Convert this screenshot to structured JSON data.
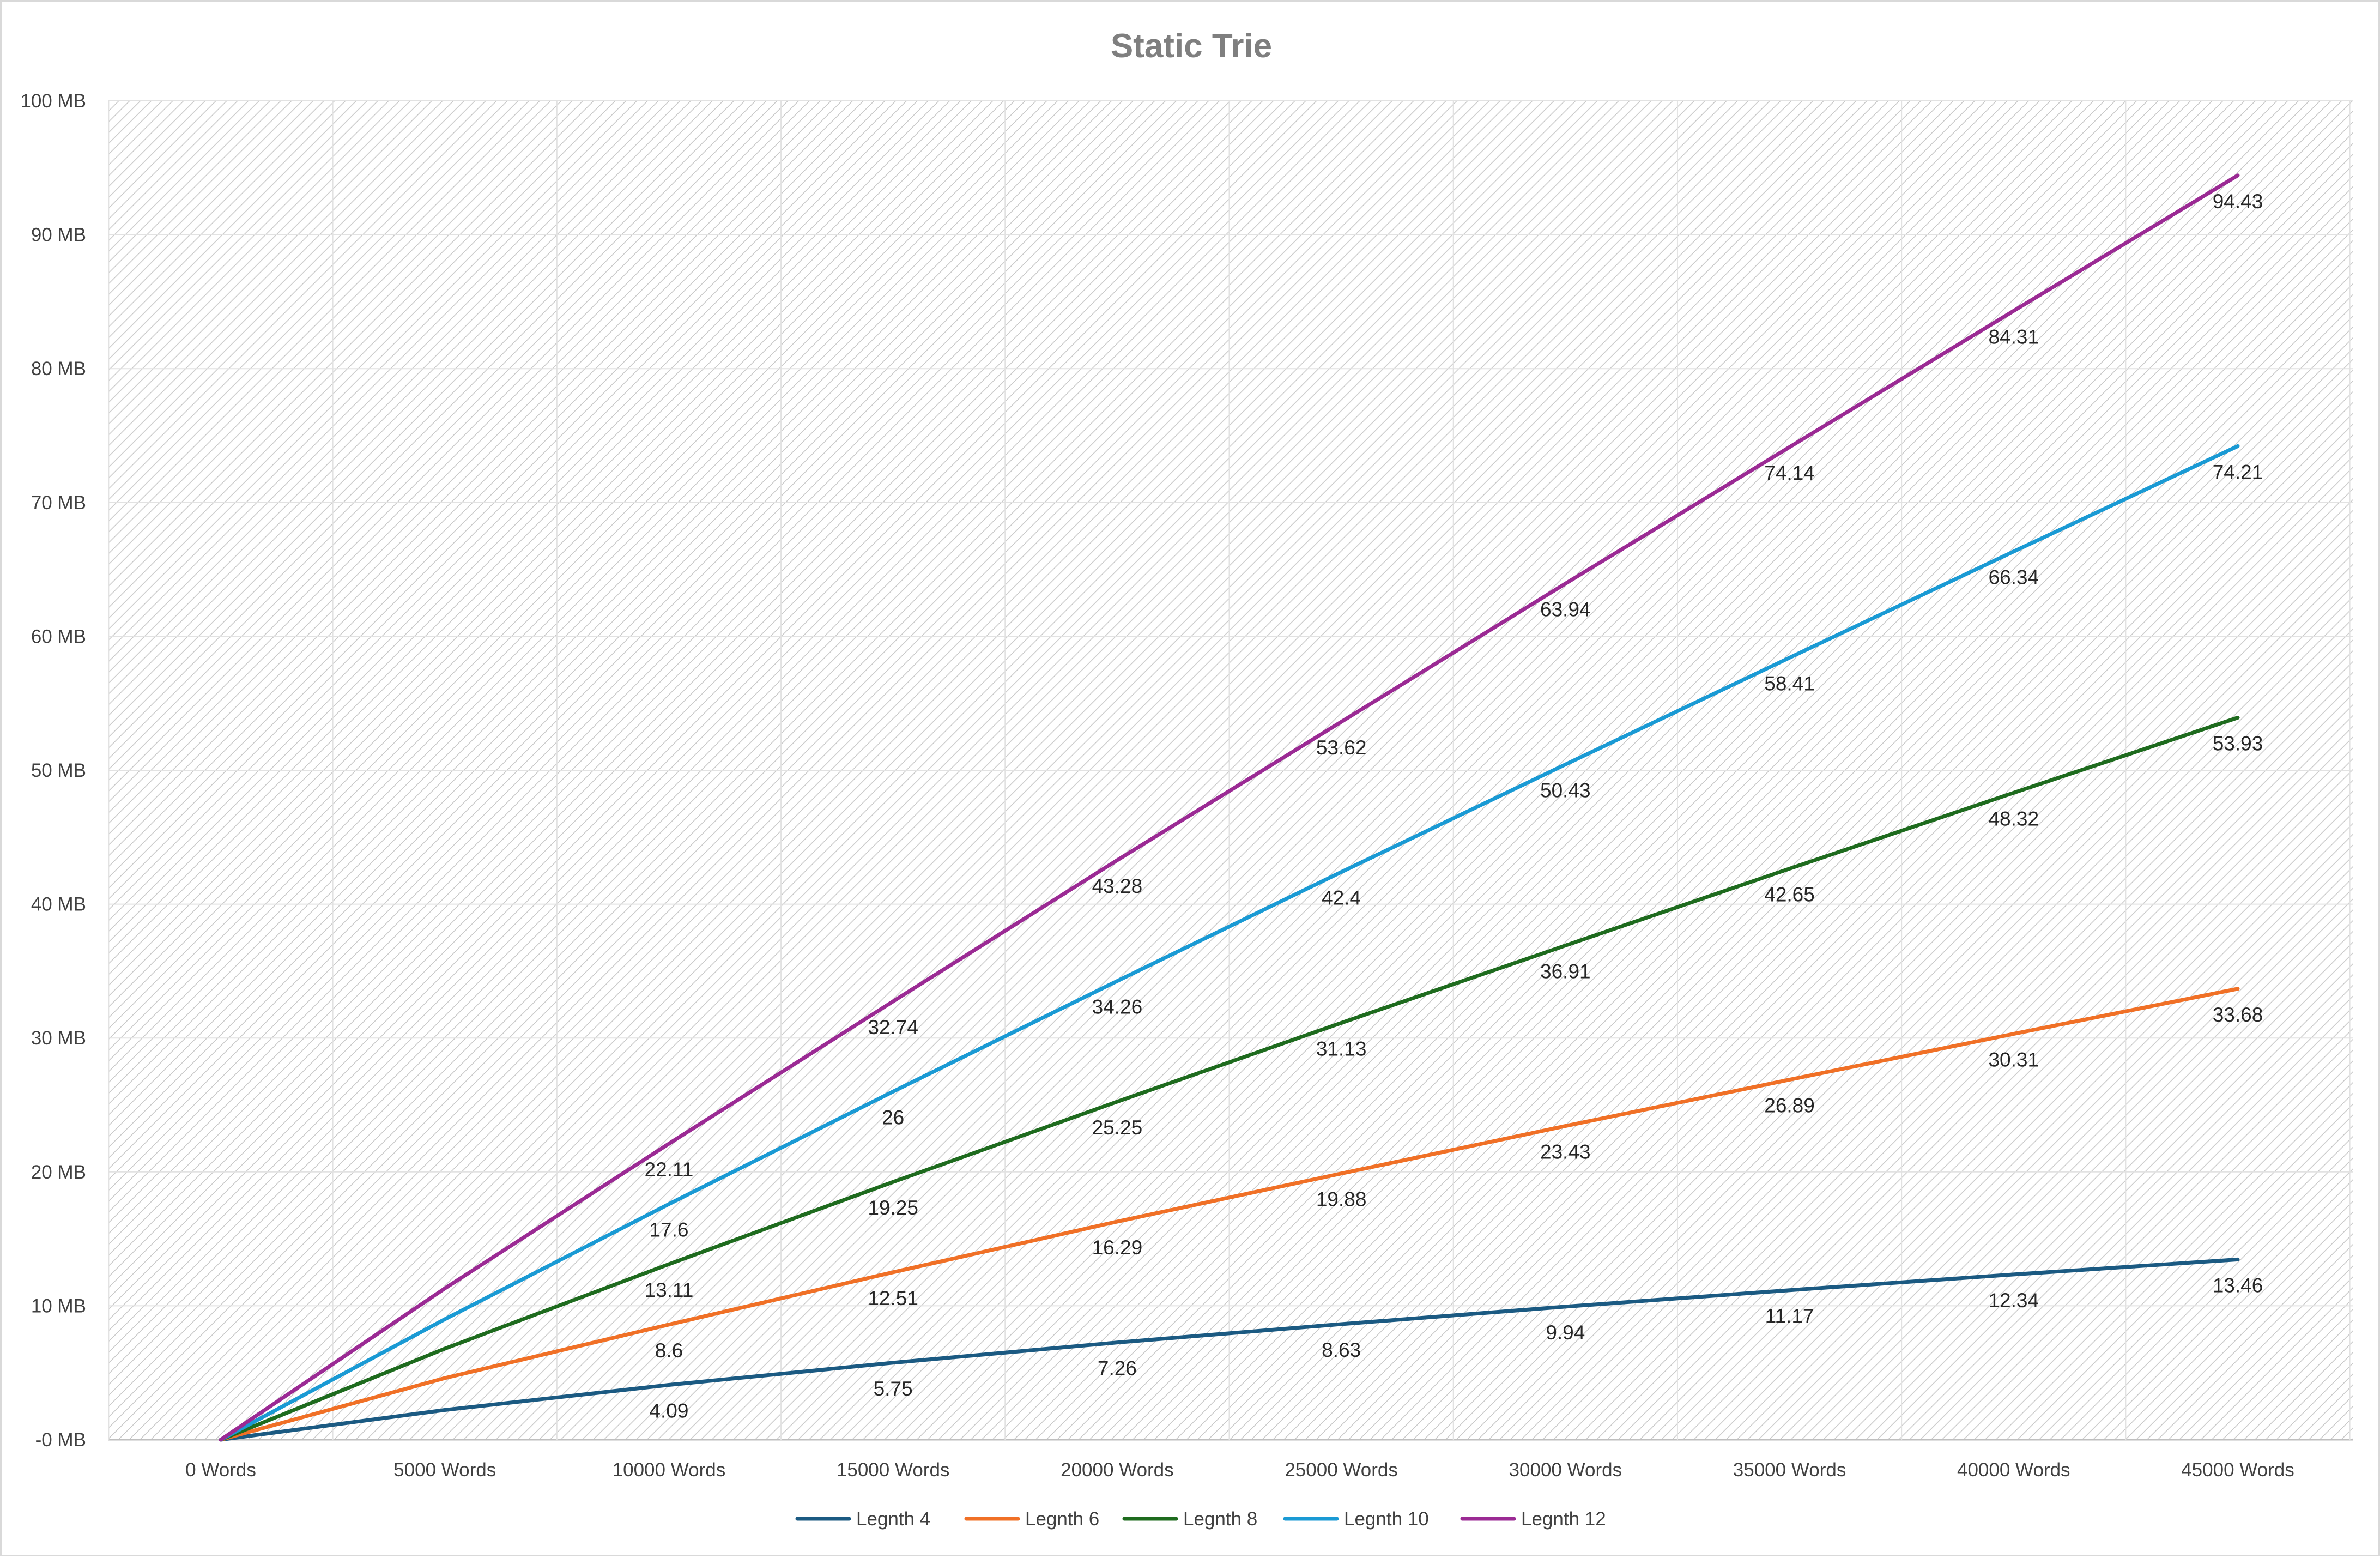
{
  "chart_data": {
    "type": "line",
    "title": "Static Trie",
    "xlabel": "",
    "ylabel": "",
    "categories": [
      "0 Words",
      "5000 Words",
      "10000 Words",
      "15000 Words",
      "20000 Words",
      "25000 Words",
      "30000 Words",
      "35000 Words",
      "40000 Words",
      "45000 Words"
    ],
    "y_ticks": [
      "-0 MB",
      "10 MB",
      "20 MB",
      "30 MB",
      "40 MB",
      "50 MB",
      "60 MB",
      "70 MB",
      "80 MB",
      "90 MB",
      "100 MB"
    ],
    "ylim": [
      0,
      100
    ],
    "grid": true,
    "plot_background": "diagonal hatch",
    "legend_position": "bottom",
    "series": [
      {
        "name": "Legnth 4",
        "color": "#1b5a82",
        "values": [
          0,
          2.22,
          4.09,
          5.75,
          7.26,
          8.63,
          9.94,
          11.17,
          12.34,
          13.46
        ],
        "data_labels": [
          null,
          null,
          "4.09",
          "5.75",
          "7.26",
          "8.63",
          "9.94",
          "11.17",
          "12.34",
          "13.46"
        ]
      },
      {
        "name": "Legnth 6",
        "color": "#f07026",
        "values": [
          0,
          4.6,
          8.6,
          12.51,
          16.29,
          19.88,
          23.43,
          26.89,
          30.31,
          33.68
        ],
        "data_labels": [
          null,
          null,
          "8.6",
          "12.51",
          "16.29",
          "19.88",
          "23.43",
          "26.89",
          "30.31",
          "33.68"
        ]
      },
      {
        "name": "Legnth 8",
        "color": "#1e6b1e",
        "values": [
          0,
          6.8,
          13.11,
          19.25,
          25.25,
          31.13,
          36.91,
          42.65,
          48.32,
          53.93
        ],
        "data_labels": [
          null,
          null,
          "13.11",
          "19.25",
          "25.25",
          "31.13",
          "36.91",
          "42.65",
          "48.32",
          "53.93"
        ]
      },
      {
        "name": "Legnth 10",
        "color": "#1a9ad4",
        "values": [
          0,
          9.0,
          17.6,
          26,
          34.26,
          42.4,
          50.43,
          58.41,
          66.34,
          74.21
        ],
        "data_labels": [
          null,
          null,
          "17.6",
          "26",
          "34.26",
          "42.4",
          "50.43",
          "58.41",
          "66.34",
          "74.21"
        ]
      },
      {
        "name": "Legnth 12",
        "color": "#9b2a94",
        "values": [
          0,
          11.3,
          22.11,
          32.74,
          43.28,
          53.62,
          63.94,
          74.14,
          84.31,
          94.43
        ],
        "data_labels": [
          null,
          null,
          "22.11",
          "32.74",
          "43.28",
          "53.62",
          "63.94",
          "74.14",
          "84.31",
          "94.43"
        ]
      }
    ]
  }
}
